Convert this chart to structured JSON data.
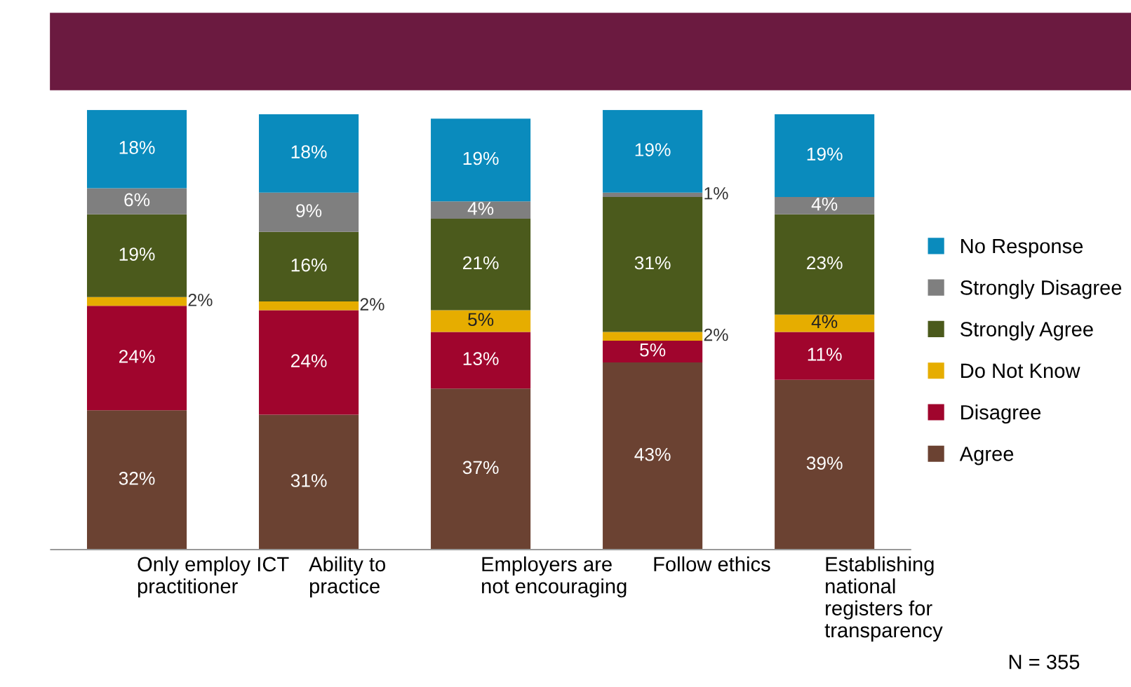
{
  "chart_data": {
    "type": "bar",
    "stacked": true,
    "legend": "right",
    "grid": false,
    "categories": [
      "Only employ ICT\npractitioner",
      "Ability to\npractice",
      "Employers are\nnot encouraging",
      "Follow ethics",
      "Establishing\nnational\nregisters for\ntransparency"
    ],
    "series": [
      {
        "name": "Agree",
        "color": "#6b4232",
        "values": [
          32,
          31,
          37,
          43,
          39
        ],
        "value_labels": [
          "32%",
          "31%",
          "37%",
          "43%",
          "39%"
        ]
      },
      {
        "name": "Disagree",
        "color": "#a0052d",
        "values": [
          24,
          24,
          13,
          5,
          11
        ],
        "value_labels": [
          "24%",
          "24%",
          "13%",
          "5%",
          "11%"
        ]
      },
      {
        "name": "Do Not Know",
        "color": "#e6ad00",
        "values": [
          2,
          2,
          5,
          2,
          4
        ],
        "value_labels": [
          "2%",
          "2%",
          "5%",
          "2%",
          "4%"
        ]
      },
      {
        "name": "Strongly Agree",
        "color": "#4b5a1c",
        "values": [
          19,
          16,
          21,
          31,
          23
        ],
        "value_labels": [
          "19%",
          "16%",
          "21%",
          "31%",
          "23%"
        ]
      },
      {
        "name": "Strongly Disagree",
        "color": "#7f7f7f",
        "values": [
          6,
          9,
          4,
          1,
          4
        ],
        "value_labels": [
          "6%",
          "9%",
          "4%",
          "1%",
          "4%"
        ]
      },
      {
        "name": "No Response",
        "color": "#0a8bbd",
        "values": [
          18,
          18,
          19,
          19,
          19
        ],
        "value_labels": [
          "18%",
          "18%",
          "19%",
          "19%",
          "19%"
        ]
      }
    ],
    "annotations": [
      "N = 355"
    ]
  }
}
